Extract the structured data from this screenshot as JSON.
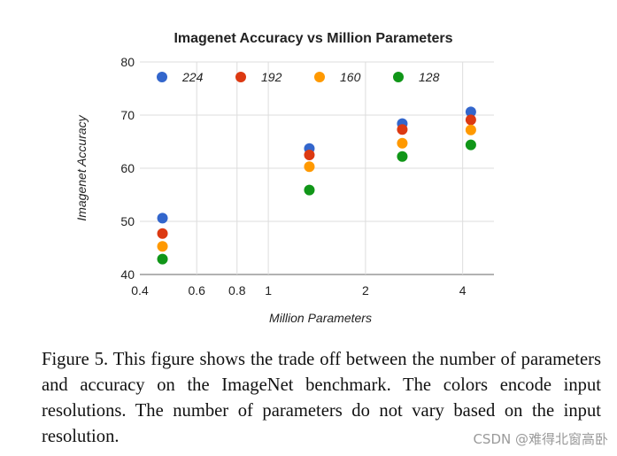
{
  "chart_data": {
    "type": "scatter",
    "title": "Imagenet Accuracy vs Million Parameters",
    "xlabel": "Million Parameters",
    "ylabel": "Imagenet Accuracy",
    "xscale": "log",
    "xlim": [
      0.4,
      5.0
    ],
    "ylim": [
      40,
      80
    ],
    "xticks": [
      0.4,
      0.6,
      0.8,
      1,
      2,
      4
    ],
    "xtick_labels": [
      "0.4",
      "0.6",
      "0.8",
      "1",
      "2",
      "4"
    ],
    "yticks": [
      40,
      50,
      60,
      70,
      80
    ],
    "ytick_labels": [
      "40",
      "50",
      "60",
      "70",
      "80"
    ],
    "grid": true,
    "legend_position": "top",
    "series": [
      {
        "name": "224",
        "color": "#3366cc",
        "x": [
          0.47,
          1.34,
          2.6,
          4.24
        ],
        "y": [
          50.6,
          63.7,
          68.4,
          70.6
        ]
      },
      {
        "name": "192",
        "color": "#dc3912",
        "x": [
          0.47,
          1.34,
          2.6,
          4.24
        ],
        "y": [
          47.7,
          62.5,
          67.3,
          69.1
        ]
      },
      {
        "name": "160",
        "color": "#ff9900",
        "x": [
          0.47,
          1.34,
          2.6,
          4.24
        ],
        "y": [
          45.3,
          60.3,
          64.7,
          67.2
        ]
      },
      {
        "name": "128",
        "color": "#109618",
        "x": [
          0.47,
          1.34,
          2.6,
          4.24
        ],
        "y": [
          42.9,
          55.9,
          62.2,
          64.4
        ]
      }
    ]
  },
  "caption": "Figure 5. This figure shows the trade off between the number of parameters and accuracy on the ImageNet benchmark. The colors encode input resolutions.  The number of parameters do not vary based on the input resolution.",
  "watermark": "CSDN @难得北窗高卧"
}
